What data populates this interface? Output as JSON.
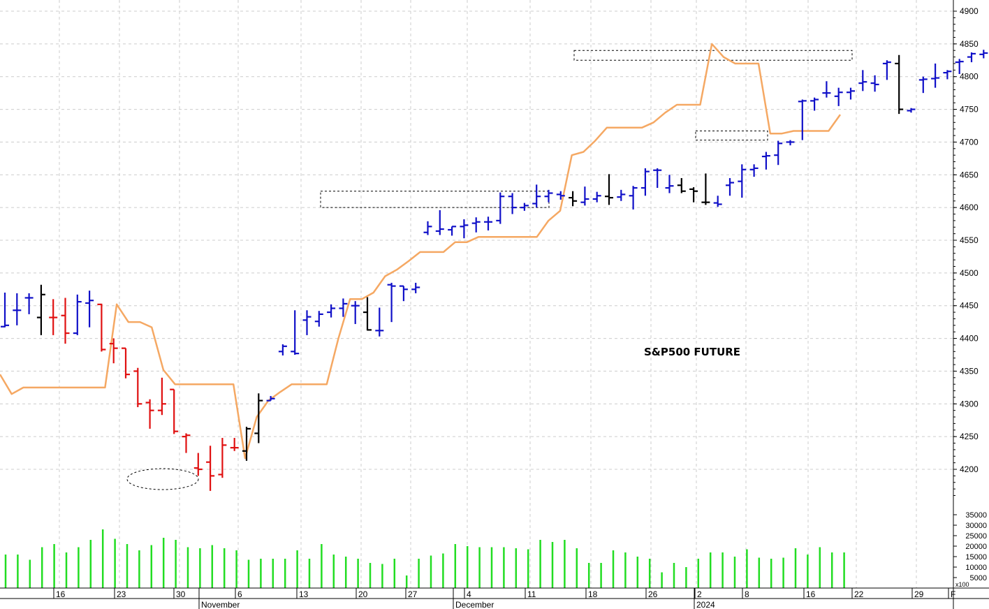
{
  "chart_data": {
    "type": "ohlc",
    "title": "S&P500 FUTURE",
    "colors": {
      "up": "#1010c8",
      "down": "#e01010",
      "neutral": "#000000",
      "stop_line": "#f5a863",
      "volume": "#22dd22",
      "grid": "#cccccc"
    },
    "price_axis": {
      "min": 4150,
      "max": 4900,
      "ticks": [
        4200,
        4250,
        4300,
        4350,
        4400,
        4450,
        4500,
        4550,
        4600,
        4650,
        4700,
        4750,
        4800,
        4850,
        4900
      ]
    },
    "volume_axis": {
      "max": 35000,
      "ticks": [
        5000,
        10000,
        15000,
        20000,
        25000,
        30000,
        35000
      ],
      "unit_label": "x100"
    },
    "x_day_labels": [
      "16",
      "23",
      "30",
      "6",
      "13",
      "20",
      "27",
      "4",
      "11",
      "18",
      "26",
      "2",
      "8",
      "16",
      "22",
      "29",
      "F"
    ],
    "month_labels": [
      "November",
      "December",
      "2024"
    ],
    "bars": [
      {
        "o": 4418,
        "h": 4470,
        "l": 4417,
        "c": 4420,
        "color": "up"
      },
      {
        "o": 4443,
        "h": 4469,
        "l": 4420,
        "c": 4443,
        "color": "up"
      },
      {
        "o": 4462,
        "h": 4469,
        "l": 4437,
        "c": 4462,
        "color": "up"
      },
      {
        "o": 4432,
        "h": 4482,
        "l": 4405,
        "c": 4467,
        "color": "neutral"
      },
      {
        "o": 4432,
        "h": 4460,
        "l": 4405,
        "c": 4432,
        "color": "down"
      },
      {
        "o": 4435,
        "h": 4462,
        "l": 4392,
        "c": 4408,
        "color": "down"
      },
      {
        "o": 4408,
        "h": 4467,
        "l": 4405,
        "c": 4456,
        "color": "up"
      },
      {
        "o": 4454,
        "h": 4473,
        "l": 4417,
        "c": 4458,
        "color": "up"
      },
      {
        "o": 4452,
        "h": 4453,
        "l": 4380,
        "c": 4383,
        "color": "down"
      },
      {
        "o": 4392,
        "h": 4400,
        "l": 4362,
        "c": 4385,
        "color": "down"
      },
      {
        "o": 4385,
        "h": 4385,
        "l": 4339,
        "c": 4345,
        "color": "down"
      },
      {
        "o": 4350,
        "h": 4355,
        "l": 4295,
        "c": 4300,
        "color": "down"
      },
      {
        "o": 4302,
        "h": 4307,
        "l": 4262,
        "c": 4290,
        "color": "down"
      },
      {
        "o": 4290,
        "h": 4340,
        "l": 4283,
        "c": 4300,
        "color": "down"
      },
      {
        "o": 4322,
        "h": 4322,
        "l": 4254,
        "c": 4258,
        "color": "down"
      },
      {
        "o": 4250,
        "h": 4255,
        "l": 4225,
        "c": 4252,
        "color": "down"
      },
      {
        "o": 4202,
        "h": 4225,
        "l": 4190,
        "c": 4200,
        "color": "down"
      },
      {
        "o": 4211,
        "h": 4236,
        "l": 4167,
        "c": 4190,
        "color": "down"
      },
      {
        "o": 4192,
        "h": 4248,
        "l": 4187,
        "c": 4237,
        "color": "down"
      },
      {
        "o": 4233,
        "h": 4248,
        "l": 4228,
        "c": 4233,
        "color": "down"
      },
      {
        "o": 4228,
        "h": 4265,
        "l": 4213,
        "c": 4262,
        "color": "neutral"
      },
      {
        "o": 4255,
        "h": 4316,
        "l": 4240,
        "c": 4305,
        "color": "neutral"
      },
      {
        "o": 4305,
        "h": 4312,
        "l": 4305,
        "c": 4308,
        "color": "up"
      },
      {
        "o": 4380,
        "h": 4391,
        "l": 4374,
        "c": 4388,
        "color": "up"
      },
      {
        "o": 4380,
        "h": 4443,
        "l": 4375,
        "c": 4377,
        "color": "up"
      },
      {
        "o": 4428,
        "h": 4443,
        "l": 4405,
        "c": 4433,
        "color": "up"
      },
      {
        "o": 4426,
        "h": 4442,
        "l": 4418,
        "c": 4437,
        "color": "up"
      },
      {
        "o": 4440,
        "h": 4452,
        "l": 4432,
        "c": 4446,
        "color": "up"
      },
      {
        "o": 4446,
        "h": 4461,
        "l": 4433,
        "c": 4453,
        "color": "up"
      },
      {
        "o": 4450,
        "h": 4457,
        "l": 4422,
        "c": 4450,
        "color": "up"
      },
      {
        "o": 4440,
        "h": 4463,
        "l": 4412,
        "c": 4413,
        "color": "neutral"
      },
      {
        "o": 4412,
        "h": 4447,
        "l": 4403,
        "c": 4412,
        "color": "up"
      },
      {
        "o": 4482,
        "h": 4485,
        "l": 4425,
        "c": 4480,
        "color": "up"
      },
      {
        "o": 4480,
        "h": 4480,
        "l": 4457,
        "c": 4475,
        "color": "up"
      },
      {
        "o": 4475,
        "h": 4485,
        "l": 4469,
        "c": 4478,
        "color": "up"
      },
      {
        "o": 4562,
        "h": 4579,
        "l": 4558,
        "c": 4571,
        "color": "up"
      },
      {
        "o": 4564,
        "h": 4596,
        "l": 4558,
        "c": 4567,
        "color": "up"
      },
      {
        "o": 4566,
        "h": 4571,
        "l": 4557,
        "c": 4571,
        "color": "up"
      },
      {
        "o": 4571,
        "h": 4582,
        "l": 4553,
        "c": 4573,
        "color": "up"
      },
      {
        "o": 4576,
        "h": 4585,
        "l": 4562,
        "c": 4578,
        "color": "up"
      },
      {
        "o": 4578,
        "h": 4586,
        "l": 4565,
        "c": 4578,
        "color": "up"
      },
      {
        "o": 4580,
        "h": 4623,
        "l": 4575,
        "c": 4617,
        "color": "up"
      },
      {
        "o": 4617,
        "h": 4622,
        "l": 4590,
        "c": 4600,
        "color": "up"
      },
      {
        "o": 4600,
        "h": 4607,
        "l": 4595,
        "c": 4603,
        "color": "up"
      },
      {
        "o": 4606,
        "h": 4635,
        "l": 4600,
        "c": 4617,
        "color": "up"
      },
      {
        "o": 4617,
        "h": 4627,
        "l": 4608,
        "c": 4622,
        "color": "up"
      },
      {
        "o": 4620,
        "h": 4625,
        "l": 4612,
        "c": 4618,
        "color": "up"
      },
      {
        "o": 4615,
        "h": 4625,
        "l": 4602,
        "c": 4610,
        "color": "neutral"
      },
      {
        "o": 4608,
        "h": 4632,
        "l": 4603,
        "c": 4613,
        "color": "up"
      },
      {
        "o": 4613,
        "h": 4624,
        "l": 4608,
        "c": 4618,
        "color": "up"
      },
      {
        "o": 4617,
        "h": 4651,
        "l": 4604,
        "c": 4615,
        "color": "neutral"
      },
      {
        "o": 4616,
        "h": 4627,
        "l": 4610,
        "c": 4620,
        "color": "up"
      },
      {
        "o": 4618,
        "h": 4633,
        "l": 4597,
        "c": 4630,
        "color": "up"
      },
      {
        "o": 4630,
        "h": 4660,
        "l": 4618,
        "c": 4655,
        "color": "up"
      },
      {
        "o": 4657,
        "h": 4660,
        "l": 4630,
        "c": 4657,
        "color": "up"
      },
      {
        "o": 4630,
        "h": 4650,
        "l": 4622,
        "c": 4633,
        "color": "up"
      },
      {
        "o": 4634,
        "h": 4645,
        "l": 4622,
        "c": 4625,
        "color": "neutral"
      },
      {
        "o": 4628,
        "h": 4631,
        "l": 4608,
        "c": 4625,
        "color": "neutral"
      },
      {
        "o": 4608,
        "h": 4652,
        "l": 4604,
        "c": 4608,
        "color": "neutral"
      },
      {
        "o": 4607,
        "h": 4618,
        "l": 4601,
        "c": 4605,
        "color": "up"
      },
      {
        "o": 4634,
        "h": 4645,
        "l": 4618,
        "c": 4638,
        "color": "up"
      },
      {
        "o": 4640,
        "h": 4666,
        "l": 4615,
        "c": 4658,
        "color": "up"
      },
      {
        "o": 4658,
        "h": 4666,
        "l": 4647,
        "c": 4660,
        "color": "up"
      },
      {
        "o": 4678,
        "h": 4685,
        "l": 4658,
        "c": 4679,
        "color": "up"
      },
      {
        "o": 4680,
        "h": 4702,
        "l": 4665,
        "c": 4698,
        "color": "up"
      },
      {
        "o": 4700,
        "h": 4703,
        "l": 4695,
        "c": 4700,
        "color": "up"
      },
      {
        "o": 4762,
        "h": 4765,
        "l": 4703,
        "c": 4763,
        "color": "up"
      },
      {
        "o": 4763,
        "h": 4768,
        "l": 4748,
        "c": 4765,
        "color": "up"
      },
      {
        "o": 4775,
        "h": 4793,
        "l": 4768,
        "c": 4775,
        "color": "up"
      },
      {
        "o": 4770,
        "h": 4783,
        "l": 4755,
        "c": 4776,
        "color": "up"
      },
      {
        "o": 4776,
        "h": 4783,
        "l": 4765,
        "c": 4778,
        "color": "up"
      },
      {
        "o": 4790,
        "h": 4810,
        "l": 4778,
        "c": 4792,
        "color": "up"
      },
      {
        "o": 4790,
        "h": 4802,
        "l": 4777,
        "c": 4788,
        "color": "up"
      },
      {
        "o": 4820,
        "h": 4825,
        "l": 4795,
        "c": 4822,
        "color": "up"
      },
      {
        "o": 4820,
        "h": 4833,
        "l": 4743,
        "c": 4750,
        "color": "neutral"
      },
      {
        "o": 4748,
        "h": 4752,
        "l": 4745,
        "c": 4750,
        "color": "up"
      },
      {
        "o": 4795,
        "h": 4800,
        "l": 4775,
        "c": 4796,
        "color": "up"
      },
      {
        "o": 4797,
        "h": 4820,
        "l": 4783,
        "c": 4798,
        "color": "up"
      },
      {
        "o": 4806,
        "h": 4810,
        "l": 4796,
        "c": 4808,
        "color": "up"
      },
      {
        "o": 4822,
        "h": 4827,
        "l": 4804,
        "c": 4823,
        "color": "up"
      },
      {
        "o": 4830,
        "h": 4837,
        "l": 4822,
        "c": 4835,
        "color": "up"
      },
      {
        "o": 4834,
        "h": 4841,
        "l": 4828,
        "c": 4836,
        "color": "up"
      },
      {
        "o": 4836,
        "h": 4842,
        "l": 4830,
        "c": 4834,
        "color": "up"
      },
      {
        "o": 4834,
        "h": 4840,
        "l": 4827,
        "c": 4833,
        "color": "neutral"
      },
      {
        "o": 4837,
        "h": 4843,
        "l": 4795,
        "c": 4820,
        "color": "neutral"
      },
      {
        "o": 4820,
        "h": 4829,
        "l": 4767,
        "c": 4815,
        "color": "neutral"
      },
      {
        "o": 4786,
        "h": 4797,
        "l": 4765,
        "c": 4787,
        "color": "neutral"
      },
      {
        "o": 4790,
        "h": 4792,
        "l": 4745,
        "c": 4748,
        "color": "down"
      },
      {
        "o": 4748,
        "h": 4758,
        "l": 4740,
        "c": 4750,
        "color": "down"
      },
      {
        "o": 4749,
        "h": 4753,
        "l": 4725,
        "c": 4730,
        "color": "down"
      },
      {
        "o": 4730,
        "h": 4745,
        "l": 4720,
        "c": 4735,
        "color": "down"
      },
      {
        "o": 4735,
        "h": 4762,
        "l": 4702,
        "c": 4737,
        "color": "down"
      },
      {
        "o": 4737,
        "h": 4737,
        "l": 4735,
        "c": 4737,
        "color": "up"
      },
      {
        "o": 4735,
        "h": 4805,
        "l": 4715,
        "c": 4803,
        "color": "up"
      },
      {
        "o": 4800,
        "h": 4808,
        "l": 4768,
        "c": 4798,
        "color": "up"
      },
      {
        "o": 4790,
        "h": 4807,
        "l": 4780,
        "c": 4790,
        "color": "up"
      },
      {
        "o": 4785,
        "h": 4830,
        "l": 4783,
        "c": 4822,
        "color": "up"
      },
      {
        "o": 4822,
        "h": 4840,
        "l": 4772,
        "c": 4822,
        "color": "up"
      },
      {
        "o": 4815,
        "h": 4830,
        "l": 4790,
        "c": 4818,
        "color": "up"
      },
      {
        "o": 4816,
        "h": 4838,
        "l": 4788,
        "c": 4813,
        "color": "up"
      },
      {
        "o": 4817,
        "h": 4825,
        "l": 4780,
        "c": 4800,
        "color": "neutral"
      },
      {
        "o": 4800,
        "h": 4803,
        "l": 4758,
        "c": 4798,
        "color": "down"
      },
      {
        "o": 4775,
        "h": 4800,
        "l": 4745,
        "c": 4775,
        "color": "down"
      },
      {
        "o": 4770,
        "h": 4775,
        "l": 4765,
        "c": 4772,
        "color": "up"
      },
      {
        "o": 4770,
        "h": 4820,
        "l": 4765,
        "c": 4815,
        "color": "up"
      },
      {
        "o": 4815,
        "h": 4822,
        "l": 4815,
        "c": 4820,
        "color": "up"
      },
      {
        "o": 4825,
        "h": 4872,
        "l": 4822,
        "c": 4868,
        "color": "up"
      }
    ],
    "stop_line": [
      4345,
      4315,
      4325,
      4325,
      4325,
      4325,
      4325,
      4325,
      4325,
      4325,
      4452,
      4425,
      4425,
      4417,
      4352,
      4330,
      4330,
      4330,
      4330,
      4330,
      4330,
      4217,
      4280,
      4305,
      4318,
      4330,
      4330,
      4330,
      4330,
      4400,
      4460,
      4460,
      4470,
      4495,
      4505,
      4518,
      4532,
      4532,
      4532,
      4547,
      4547,
      4555,
      4555,
      4555,
      4555,
      4555,
      4555,
      4580,
      4595,
      4680,
      4685,
      4702,
      4722,
      4722,
      4722,
      4722,
      4730,
      4745,
      4757,
      4757,
      4757,
      4850,
      4830,
      4820,
      4820,
      4820,
      4713,
      4713,
      4717,
      4717,
      4717,
      4717,
      4742
    ],
    "volume": [
      16000,
      16000,
      13500,
      19500,
      21000,
      17000,
      19500,
      23000,
      28000,
      23500,
      21000,
      18000,
      20500,
      24000,
      23000,
      19500,
      19000,
      20500,
      19000,
      18000,
      13500,
      14000,
      14000,
      14000,
      18000,
      14000,
      21000,
      16000,
      15000,
      14000,
      12000,
      11500,
      14000,
      6000,
      14000,
      15500,
      16500,
      21000,
      20000,
      19500,
      19500,
      19500,
      19000,
      18500,
      23000,
      22000,
      23000,
      19000,
      12000,
      12000,
      18000,
      17000,
      15000,
      14000,
      7500,
      12000,
      10000,
      14000,
      17000,
      17000,
      15000,
      18500,
      14500,
      14000,
      14500,
      19000,
      16000,
      19500,
      17000,
      17000,
      0
    ],
    "annotations": [
      {
        "type": "dashed-ellipse",
        "around": "October low"
      },
      {
        "type": "dashed-box",
        "range": [
          4600,
          4625
        ]
      },
      {
        "type": "dashed-box",
        "range": [
          4825,
          4840
        ]
      },
      {
        "type": "dashed-box",
        "range": [
          4703,
          4717
        ]
      }
    ]
  }
}
